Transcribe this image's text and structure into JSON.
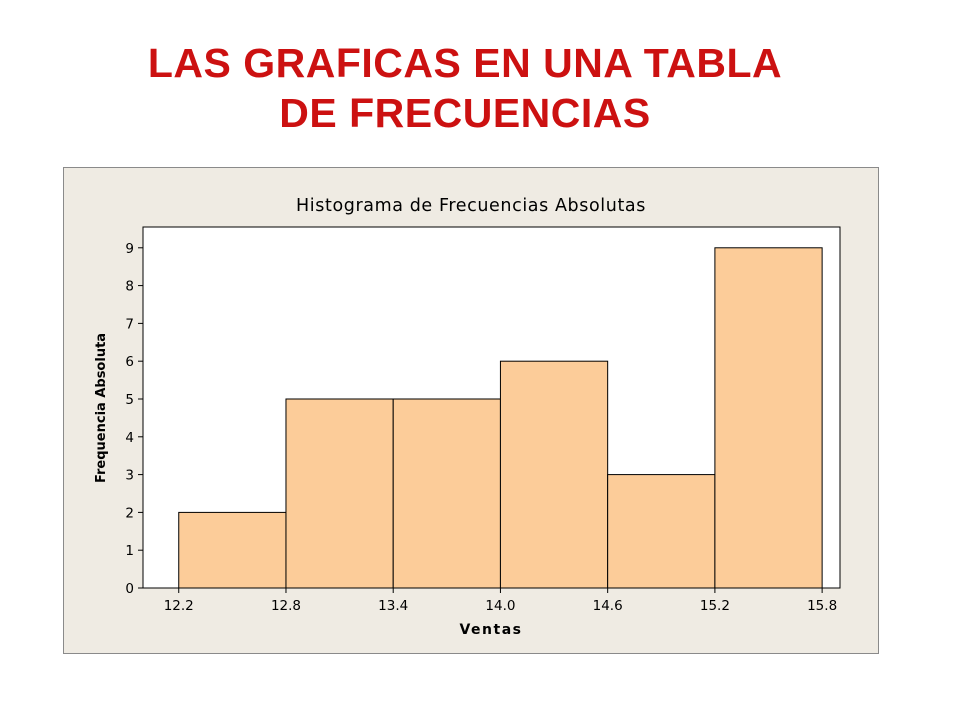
{
  "slide": {
    "title_line1": "LAS GRAFICAS EN UNA TABLA",
    "title_line2": "DE FRECUENCIAS"
  },
  "colors": {
    "title": "#cc1111",
    "bar_fill": "#fccc99",
    "chart_background": "#efebe3",
    "plot_background": "#ffffff"
  },
  "chart_data": {
    "type": "bar",
    "title": "Histograma de Frecuencias Absolutas",
    "xlabel": "Ventas",
    "ylabel": "Frequencia Absoluta",
    "bin_edges": [
      12.2,
      12.8,
      13.4,
      14.0,
      14.6,
      15.2,
      15.8
    ],
    "x_tick_labels": [
      "12.2",
      "12.8",
      "13.4",
      "14.0",
      "14.6",
      "15.2",
      "15.8"
    ],
    "values": [
      2,
      5,
      5,
      6,
      3,
      9
    ],
    "y_ticks": [
      0,
      1,
      2,
      3,
      4,
      5,
      6,
      7,
      8,
      9
    ],
    "ylim": [
      0,
      9.55
    ],
    "xlim": [
      12.0,
      15.9
    ],
    "grid": false,
    "legend": false
  }
}
